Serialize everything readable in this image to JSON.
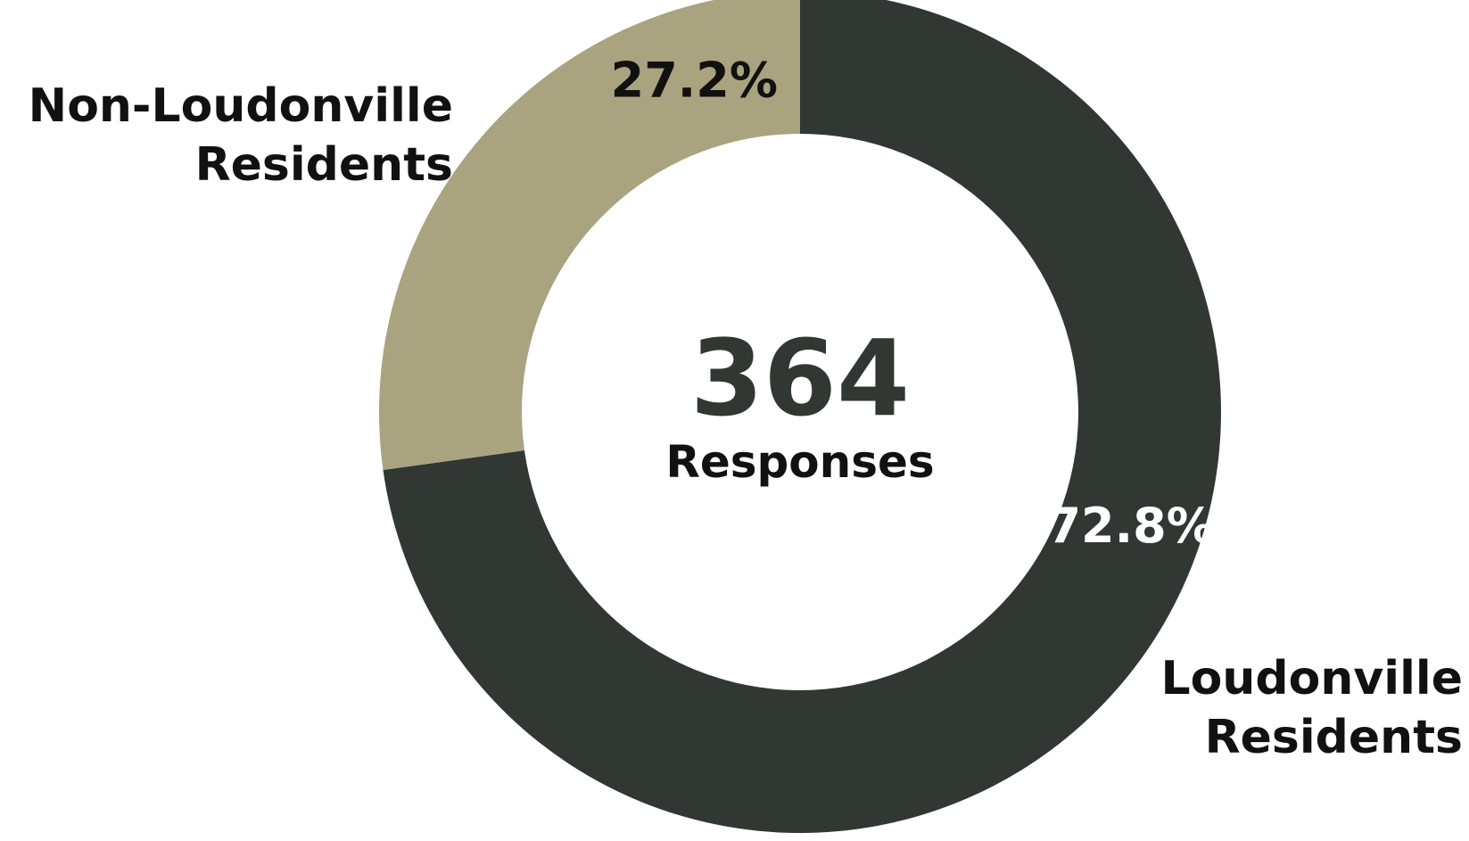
{
  "chart_data": {
    "type": "pie",
    "variant": "donut",
    "center_value": "364",
    "center_label": "Responses",
    "slices": [
      {
        "name_lines": [
          "Loudonville",
          "Residents"
        ],
        "value": 72.8,
        "value_label": "72.8%",
        "color": "#313833",
        "value_label_color": "#ffffff"
      },
      {
        "name_lines": [
          "Non-Loudonville",
          "Residents"
        ],
        "value": 27.2,
        "value_label": "27.2%",
        "color": "#a9a37f",
        "value_label_color": "#111111"
      }
    ],
    "name_label_color": "#111111",
    "center_color": "#313833"
  }
}
